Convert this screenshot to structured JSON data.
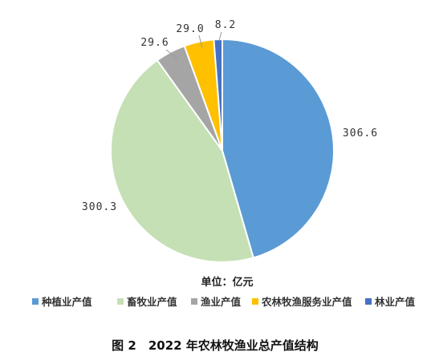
{
  "chart_data": {
    "type": "pie",
    "title": "图 2　2022 年农林牧渔业总产值结构",
    "unit_label": "单位：亿元",
    "slices": [
      {
        "name": "种植业产值",
        "value": 306.6,
        "label": "306.6",
        "color": "#5b9bd5"
      },
      {
        "name": "畜牧业产值",
        "value": 300.3,
        "label": "300.3",
        "color": "#c5e0b4"
      },
      {
        "name": "渔业产值",
        "value": 29.6,
        "label": "29.6",
        "color": "#a5a5a5"
      },
      {
        "name": "农林牧渔服务业产值",
        "value": 29.0,
        "label": "29.0",
        "color": "#ffc000"
      },
      {
        "name": "林业产值",
        "value": 8.2,
        "label": "8.2",
        "color": "#4472c4"
      }
    ],
    "start_angle_deg": 0,
    "direction": "clockwise",
    "legend_position": "bottom"
  }
}
